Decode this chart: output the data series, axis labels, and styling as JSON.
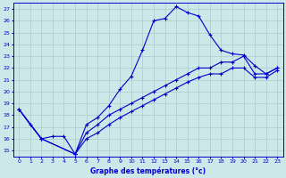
{
  "title": "Graphe des températures (°c)",
  "bg_color": "#cce8e8",
  "grid_color": "#aacccc",
  "line_color": "#0000cc",
  "xlim": [
    -0.5,
    23.5
  ],
  "ylim": [
    14.5,
    27.5
  ],
  "xticks": [
    0,
    1,
    2,
    3,
    4,
    5,
    6,
    7,
    8,
    9,
    10,
    11,
    12,
    13,
    14,
    15,
    16,
    17,
    18,
    19,
    20,
    21,
    22,
    23
  ],
  "yticks": [
    15,
    16,
    17,
    18,
    19,
    20,
    21,
    22,
    23,
    24,
    25,
    26,
    27
  ],
  "line1_x": [
    0,
    1,
    2,
    3,
    4,
    5,
    6,
    7,
    8,
    9,
    10,
    11,
    12,
    13,
    14,
    15,
    16,
    17,
    18,
    19,
    20,
    21,
    22,
    23
  ],
  "line1_y": [
    18.5,
    17.2,
    16.0,
    16.2,
    16.2,
    14.7,
    17.2,
    17.8,
    18.8,
    20.2,
    21.3,
    23.5,
    26.0,
    26.2,
    27.2,
    26.7,
    26.4,
    24.8,
    23.5,
    23.2,
    23.1,
    22.2,
    21.5,
    22.0
  ],
  "line2_x": [
    0,
    2,
    5,
    6,
    7,
    8,
    9,
    10,
    11,
    12,
    13,
    14,
    15,
    16,
    17,
    18,
    19,
    20,
    21,
    22,
    23
  ],
  "line2_y": [
    18.5,
    16.0,
    14.7,
    16.5,
    17.2,
    18.0,
    18.5,
    19.0,
    19.5,
    20.0,
    20.5,
    21.0,
    21.5,
    22.0,
    22.0,
    22.5,
    22.5,
    23.0,
    21.5,
    21.5,
    22.0
  ],
  "line3_x": [
    0,
    2,
    5,
    6,
    7,
    8,
    9,
    10,
    11,
    12,
    13,
    14,
    15,
    16,
    17,
    18,
    19,
    20,
    21,
    22,
    23
  ],
  "line3_y": [
    18.5,
    16.0,
    14.7,
    16.0,
    16.5,
    17.2,
    17.8,
    18.3,
    18.8,
    19.3,
    19.8,
    20.3,
    20.8,
    21.2,
    21.5,
    21.5,
    22.0,
    22.0,
    21.2,
    21.2,
    21.8
  ]
}
